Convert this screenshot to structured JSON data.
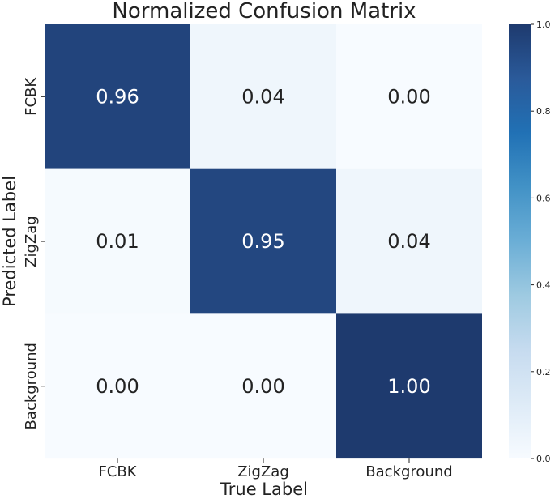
{
  "chart_data": {
    "type": "heatmap",
    "title": "Normalized Confusion Matrix",
    "xlabel": "True Label",
    "ylabel": "Predicted Label",
    "x_categories": [
      "FCBK",
      "ZigZag",
      "Background"
    ],
    "y_categories": [
      "FCBK",
      "ZigZag",
      "Background"
    ],
    "values": [
      [
        0.96,
        0.04,
        0.0
      ],
      [
        0.01,
        0.95,
        0.04
      ],
      [
        0.0,
        0.0,
        1.0
      ]
    ],
    "value_labels": [
      [
        "0.96",
        "0.04",
        "0.00"
      ],
      [
        "0.01",
        "0.95",
        "0.04"
      ],
      [
        "0.00",
        "0.00",
        "1.00"
      ]
    ],
    "colorscale": "Blues",
    "vmin": 0.0,
    "vmax": 1.0,
    "colorbar_ticks": [
      "0.0",
      "0.2",
      "0.4",
      "0.6",
      "0.8",
      "1.0"
    ]
  }
}
